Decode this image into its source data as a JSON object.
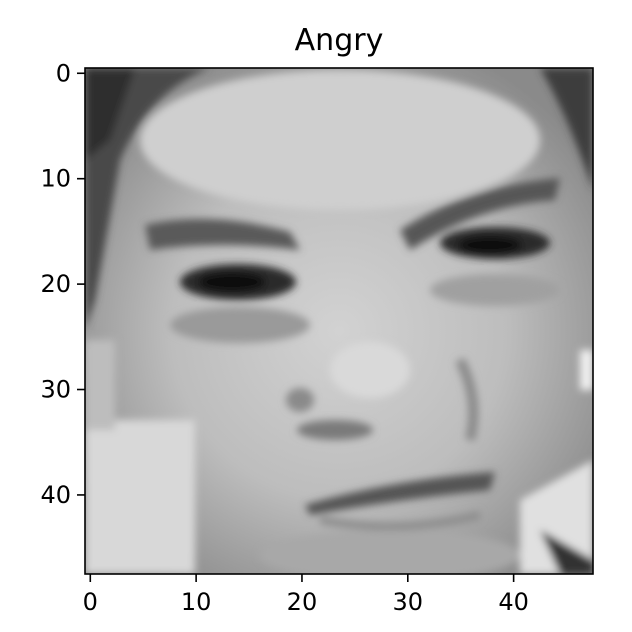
{
  "title": "Angry",
  "image": {
    "description_free": true,
    "colormap": "grayscale",
    "rows": 48,
    "cols": 48
  },
  "axes": {
    "x_ticks": [
      0,
      10,
      20,
      30,
      40
    ],
    "y_ticks": [
      0,
      10,
      20,
      30,
      40
    ],
    "x_range": [
      -0.5,
      47.5
    ],
    "y_range": [
      -0.5,
      47.5
    ]
  }
}
